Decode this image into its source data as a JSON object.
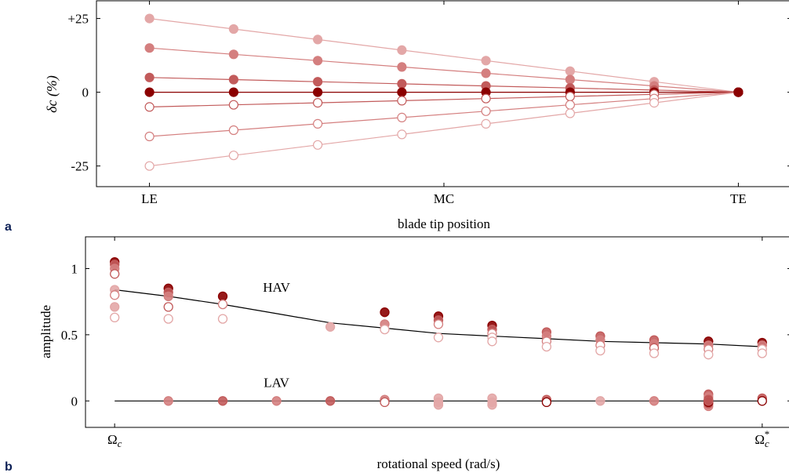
{
  "panel_labels": [
    "a",
    "b"
  ],
  "colors": {
    "dark": "#8b0000",
    "shades": [
      "#e3a7a7",
      "#d47f7f",
      "#c25b5b",
      "#8b0000"
    ],
    "model_line": "#000000"
  },
  "chart_data": [
    {
      "type": "line",
      "panel": "a",
      "xlabel": "blade tip position",
      "ylabel": "δc (%)",
      "x_ticks": [
        "LE",
        "MC",
        "TE"
      ],
      "x_tick_positions": [
        0,
        0.5,
        1
      ],
      "y_ticks": [
        "+25",
        "0",
        "-25"
      ],
      "y_tick_values": [
        25,
        0,
        -25
      ],
      "xlim": [
        -0.09,
        1.09
      ],
      "ylim": [
        -32,
        31
      ],
      "x": [
        0,
        0.1429,
        0.2857,
        0.4286,
        0.5714,
        0.7143,
        0.8571,
        1
      ],
      "series": [
        {
          "start": 25,
          "filled": true,
          "shade": 0
        },
        {
          "start": 15,
          "filled": true,
          "shade": 1
        },
        {
          "start": 5,
          "filled": true,
          "shade": 2
        },
        {
          "start": 0,
          "filled": true,
          "shade": 3
        },
        {
          "start": -5,
          "filled": false,
          "shade": 2
        },
        {
          "start": -15,
          "filled": false,
          "shade": 1
        },
        {
          "start": -25,
          "filled": false,
          "shade": 0
        }
      ]
    },
    {
      "type": "scatter",
      "panel": "b",
      "xlabel": "rotational speed (rad/s)",
      "ylabel": "amplitude",
      "x_ticks": [
        "Ωc",
        "Ωc*"
      ],
      "x_tick_positions": [
        0,
        1
      ],
      "y_ticks": [
        "0",
        "0.5",
        "1"
      ],
      "y_tick_values": [
        0,
        0.5,
        1
      ],
      "xlim": [
        -0.045,
        1.045
      ],
      "ylim": [
        -0.2,
        1.24
      ],
      "annotations": [
        {
          "text": "HAV",
          "x": 0.25,
          "y": 0.86
        },
        {
          "text": "LAV",
          "x": 0.25,
          "y": 0.14
        }
      ],
      "hav_curve": {
        "x": [
          0,
          0.083,
          0.167,
          0.25,
          0.333,
          0.417,
          0.5,
          0.583,
          0.667,
          0.75,
          0.833,
          0.917,
          1
        ],
        "y": [
          0.84,
          0.79,
          0.73,
          0.66,
          0.59,
          0.55,
          0.51,
          0.49,
          0.47,
          0.45,
          0.44,
          0.43,
          0.41
        ]
      },
      "lav_curve": {
        "x": [
          0,
          1
        ],
        "y": [
          0,
          0
        ]
      },
      "hav_points": [
        {
          "x": 0,
          "y": 1.05,
          "filled": true,
          "shade": 3
        },
        {
          "x": 0,
          "y": 1.03,
          "filled": true,
          "shade": 2
        },
        {
          "x": 0,
          "y": 1.0,
          "filled": true,
          "shade": 1
        },
        {
          "x": 0,
          "y": 0.96,
          "filled": false,
          "shade": 2
        },
        {
          "x": 0,
          "y": 0.84,
          "filled": true,
          "shade": 0
        },
        {
          "x": 0,
          "y": 0.8,
          "filled": false,
          "shade": 1
        },
        {
          "x": 0,
          "y": 0.71,
          "filled": true,
          "shade": 0
        },
        {
          "x": 0,
          "y": 0.63,
          "filled": false,
          "shade": 0
        },
        {
          "x": 0.083,
          "y": 0.85,
          "filled": true,
          "shade": 3
        },
        {
          "x": 0.083,
          "y": 0.82,
          "filled": true,
          "shade": 2
        },
        {
          "x": 0.083,
          "y": 0.79,
          "filled": true,
          "shade": 1
        },
        {
          "x": 0.083,
          "y": 0.71,
          "filled": false,
          "shade": 2
        },
        {
          "x": 0.083,
          "y": 0.62,
          "filled": false,
          "shade": 0
        },
        {
          "x": 0.167,
          "y": 0.79,
          "filled": true,
          "shade": 3
        },
        {
          "x": 0.167,
          "y": 0.73,
          "filled": false,
          "shade": 1
        },
        {
          "x": 0.167,
          "y": 0.62,
          "filled": false,
          "shade": 0
        },
        {
          "x": 0.333,
          "y": 0.56,
          "filled": true,
          "shade": 0
        },
        {
          "x": 0.417,
          "y": 0.67,
          "filled": true,
          "shade": 3
        },
        {
          "x": 0.417,
          "y": 0.58,
          "filled": true,
          "shade": 1
        },
        {
          "x": 0.417,
          "y": 0.54,
          "filled": false,
          "shade": 0
        },
        {
          "x": 0.5,
          "y": 0.64,
          "filled": true,
          "shade": 3
        },
        {
          "x": 0.5,
          "y": 0.61,
          "filled": true,
          "shade": 2
        },
        {
          "x": 0.5,
          "y": 0.58,
          "filled": false,
          "shade": 1
        },
        {
          "x": 0.5,
          "y": 0.48,
          "filled": false,
          "shade": 0
        },
        {
          "x": 0.583,
          "y": 0.57,
          "filled": true,
          "shade": 3
        },
        {
          "x": 0.583,
          "y": 0.54,
          "filled": true,
          "shade": 2
        },
        {
          "x": 0.583,
          "y": 0.51,
          "filled": false,
          "shade": 1
        },
        {
          "x": 0.583,
          "y": 0.48,
          "filled": false,
          "shade": 0
        },
        {
          "x": 0.583,
          "y": 0.45,
          "filled": false,
          "shade": 0
        },
        {
          "x": 0.667,
          "y": 0.52,
          "filled": true,
          "shade": 2
        },
        {
          "x": 0.667,
          "y": 0.49,
          "filled": true,
          "shade": 1
        },
        {
          "x": 0.667,
          "y": 0.45,
          "filled": false,
          "shade": 1
        },
        {
          "x": 0.667,
          "y": 0.41,
          "filled": false,
          "shade": 0
        },
        {
          "x": 0.75,
          "y": 0.49,
          "filled": true,
          "shade": 2
        },
        {
          "x": 0.75,
          "y": 0.46,
          "filled": true,
          "shade": 1
        },
        {
          "x": 0.75,
          "y": 0.42,
          "filled": false,
          "shade": 1
        },
        {
          "x": 0.75,
          "y": 0.38,
          "filled": false,
          "shade": 0
        },
        {
          "x": 0.833,
          "y": 0.46,
          "filled": true,
          "shade": 2
        },
        {
          "x": 0.833,
          "y": 0.43,
          "filled": true,
          "shade": 1
        },
        {
          "x": 0.833,
          "y": 0.4,
          "filled": false,
          "shade": 2
        },
        {
          "x": 0.833,
          "y": 0.36,
          "filled": false,
          "shade": 0
        },
        {
          "x": 0.917,
          "y": 0.45,
          "filled": true,
          "shade": 3
        },
        {
          "x": 0.917,
          "y": 0.42,
          "filled": true,
          "shade": 1
        },
        {
          "x": 0.917,
          "y": 0.39,
          "filled": false,
          "shade": 1
        },
        {
          "x": 0.917,
          "y": 0.35,
          "filled": false,
          "shade": 0
        },
        {
          "x": 1,
          "y": 0.44,
          "filled": true,
          "shade": 3
        },
        {
          "x": 1,
          "y": 0.42,
          "filled": true,
          "shade": 1
        },
        {
          "x": 1,
          "y": 0.39,
          "filled": false,
          "shade": 0
        },
        {
          "x": 1.0,
          "y": 0.36,
          "filled": false,
          "shade": 0
        }
      ],
      "lav_points": [
        {
          "x": 0.083,
          "y": 0.0,
          "filled": true,
          "shade": 1
        },
        {
          "x": 0.167,
          "y": 0.0,
          "filled": true,
          "shade": 2
        },
        {
          "x": 0.25,
          "y": 0.0,
          "filled": true,
          "shade": 1
        },
        {
          "x": 0.333,
          "y": 0.0,
          "filled": true,
          "shade": 2
        },
        {
          "x": 0.417,
          "y": 0.01,
          "filled": true,
          "shade": 1
        },
        {
          "x": 0.417,
          "y": -0.01,
          "filled": false,
          "shade": 2
        },
        {
          "x": 0.5,
          "y": 0.02,
          "filled": true,
          "shade": 0
        },
        {
          "x": 0.5,
          "y": -0.01,
          "filled": true,
          "shade": 0
        },
        {
          "x": 0.5,
          "y": -0.03,
          "filled": true,
          "shade": 0
        },
        {
          "x": 0.583,
          "y": 0.02,
          "filled": true,
          "shade": 0
        },
        {
          "x": 0.583,
          "y": -0.01,
          "filled": true,
          "shade": 0
        },
        {
          "x": 0.583,
          "y": -0.03,
          "filled": true,
          "shade": 0
        },
        {
          "x": 0.667,
          "y": 0.01,
          "filled": true,
          "shade": 2
        },
        {
          "x": 0.667,
          "y": -0.01,
          "filled": false,
          "shade": 3
        },
        {
          "x": 0.75,
          "y": 0.0,
          "filled": true,
          "shade": 0
        },
        {
          "x": 0.833,
          "y": 0.0,
          "filled": true,
          "shade": 1
        },
        {
          "x": 0.917,
          "y": 0.05,
          "filled": true,
          "shade": 2
        },
        {
          "x": 0.917,
          "y": 0.03,
          "filled": true,
          "shade": 1
        },
        {
          "x": 0.917,
          "y": 0.0,
          "filled": true,
          "shade": 2
        },
        {
          "x": 0.917,
          "y": -0.02,
          "filled": true,
          "shade": 1
        },
        {
          "x": 0.917,
          "y": -0.04,
          "filled": true,
          "shade": 1
        },
        {
          "x": 0.917,
          "y": 0.01,
          "filled": true,
          "shade": 2
        },
        {
          "x": 0.917,
          "y": -0.02,
          "filled": true,
          "shade": 2
        },
        {
          "x": 0.917,
          "y": 0.0,
          "filled": true,
          "shade": 3
        },
        {
          "x": 0.917,
          "y": -0.01,
          "filled": true,
          "shade": 3
        },
        {
          "x": 0.917,
          "y": 0.0,
          "filled": true,
          "shade": 2
        },
        {
          "x": 1.0,
          "y": 0.02,
          "filled": true,
          "shade": 2
        },
        {
          "x": 1.0,
          "y": 0.0,
          "filled": false,
          "shade": 3
        }
      ]
    }
  ]
}
